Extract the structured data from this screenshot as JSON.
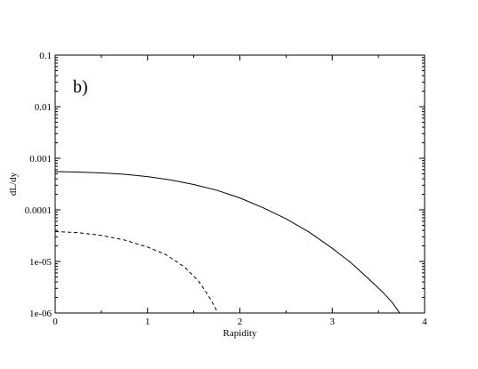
{
  "chart_data": {
    "type": "line",
    "panel_label": "b)",
    "xlabel": "Rapidity",
    "ylabel": "dL/dy",
    "xlim": [
      0,
      4
    ],
    "ylim": [
      1e-06,
      0.1
    ],
    "yscale": "log",
    "grid": false,
    "x_ticks": [
      {
        "value": 0,
        "label": "0"
      },
      {
        "value": 1,
        "label": "1"
      },
      {
        "value": 2,
        "label": "2"
      },
      {
        "value": 3,
        "label": "3"
      },
      {
        "value": 4,
        "label": "4"
      }
    ],
    "y_ticks": [
      {
        "value": 1e-06,
        "label": "1e-06"
      },
      {
        "value": 1e-05,
        "label": "1e-05"
      },
      {
        "value": 0.0001,
        "label": "0.0001"
      },
      {
        "value": 0.001,
        "label": "0.001"
      },
      {
        "value": 0.01,
        "label": "0.01"
      },
      {
        "value": 0.1,
        "label": "0.1"
      }
    ],
    "series": [
      {
        "style": "solid",
        "color": "#000000",
        "points": [
          [
            0,
            0.00055
          ],
          [
            0.25,
            0.00054
          ],
          [
            0.5,
            0.00052
          ],
          [
            0.75,
            0.00049
          ],
          [
            1.0,
            0.00044
          ],
          [
            1.25,
            0.00038
          ],
          [
            1.5,
            0.00031
          ],
          [
            1.75,
            0.00024
          ],
          [
            2.0,
            0.00017
          ],
          [
            2.25,
            0.00011
          ],
          [
            2.5,
            6.7e-05
          ],
          [
            2.75,
            3.7e-05
          ],
          [
            3.0,
            1.8e-05
          ],
          [
            3.2,
            9.5e-06
          ],
          [
            3.4,
            4.5e-06
          ],
          [
            3.55,
            2.5e-06
          ],
          [
            3.65,
            1.6e-06
          ],
          [
            3.73,
            1e-06
          ]
        ]
      },
      {
        "style": "dashed",
        "color": "#000000",
        "points": [
          [
            0,
            3.8e-05
          ],
          [
            0.25,
            3.6e-05
          ],
          [
            0.5,
            3.2e-05
          ],
          [
            0.75,
            2.6e-05
          ],
          [
            1.0,
            1.9e-05
          ],
          [
            1.2,
            1.35e-05
          ],
          [
            1.4,
            7.8e-06
          ],
          [
            1.55,
            4.2e-06
          ],
          [
            1.65,
            2.3e-06
          ],
          [
            1.72,
            1.4e-06
          ],
          [
            1.76,
            1e-06
          ]
        ]
      }
    ]
  }
}
